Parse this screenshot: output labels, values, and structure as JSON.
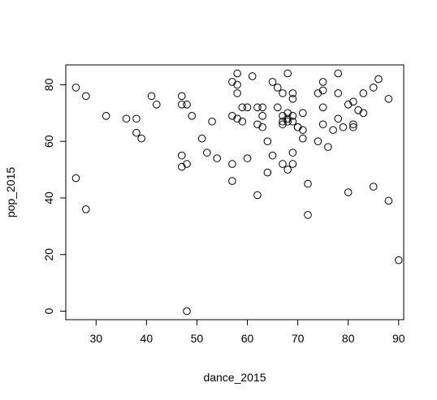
{
  "chart_data": {
    "type": "scatter",
    "xlabel": "dance_2015",
    "ylabel": "pop_2015",
    "xlim": [
      24,
      91
    ],
    "ylim": [
      -3,
      87
    ],
    "xticks": [
      30,
      40,
      50,
      60,
      70,
      80,
      90
    ],
    "yticks": [
      0,
      20,
      40,
      60,
      80
    ],
    "x": [
      26,
      26,
      28,
      28,
      32,
      36,
      38,
      38,
      39,
      41,
      42,
      47,
      47,
      47,
      47,
      48,
      48,
      48,
      49,
      51,
      52,
      53,
      54,
      57,
      57,
      57,
      57,
      58,
      58,
      58,
      58,
      59,
      59,
      60,
      60,
      61,
      62,
      62,
      62,
      63,
      63,
      63,
      64,
      64,
      65,
      65,
      66,
      66,
      67,
      67,
      67,
      67,
      67,
      68,
      68,
      68,
      68,
      68,
      69,
      69,
      69,
      69,
      69,
      69,
      70,
      70,
      71,
      71,
      71,
      72,
      72,
      74,
      74,
      75,
      75,
      75,
      75,
      76,
      77,
      78,
      78,
      78,
      79,
      80,
      80,
      81,
      81,
      81,
      82,
      83,
      83,
      85,
      85,
      86,
      88,
      88,
      90
    ],
    "y": [
      79,
      47,
      76,
      36,
      69,
      68,
      68,
      63,
      61,
      76,
      73,
      76,
      55,
      51,
      73,
      52,
      0,
      73,
      69,
      61,
      56,
      67,
      54,
      81,
      69,
      52,
      46,
      84,
      80,
      77,
      68,
      67,
      72,
      72,
      54,
      83,
      72,
      66,
      41,
      72,
      69,
      65,
      60,
      49,
      81,
      55,
      79,
      72,
      77,
      69,
      67,
      66,
      52,
      84,
      70,
      68,
      50,
      67,
      77,
      75,
      69,
      67,
      56,
      52,
      65,
      65,
      70,
      64,
      61,
      45,
      34,
      77,
      60,
      81,
      78,
      72,
      66,
      58,
      64,
      84,
      77,
      68,
      65,
      73,
      42,
      74,
      66,
      65,
      71,
      77,
      70,
      79,
      44,
      82,
      75,
      39,
      18
    ]
  }
}
